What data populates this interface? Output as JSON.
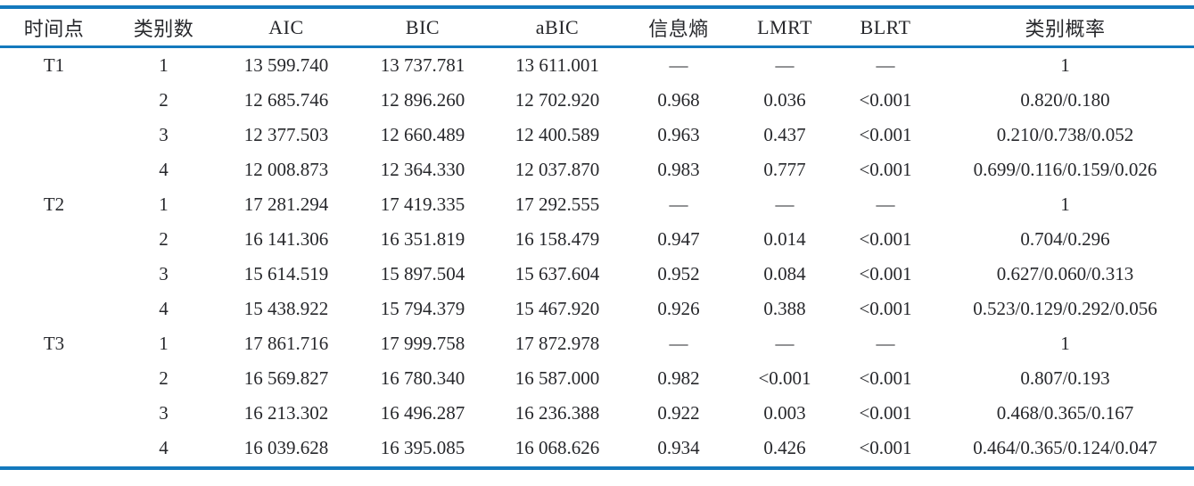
{
  "table": {
    "rule_color": "#1379bd",
    "text_color": "#26272b",
    "columns": [
      "时间点",
      "类别数",
      "AIC",
      "BIC",
      "aBIC",
      "信息熵",
      "LMRT",
      "BLRT",
      "类别概率"
    ],
    "rows": [
      [
        "T1",
        "1",
        "13 599.740",
        "13 737.781",
        "13 611.001",
        "—",
        "—",
        "—",
        "1"
      ],
      [
        "",
        "2",
        "12 685.746",
        "12 896.260",
        "12 702.920",
        "0.968",
        "0.036",
        "<0.001",
        "0.820/0.180"
      ],
      [
        "",
        "3",
        "12 377.503",
        "12 660.489",
        "12 400.589",
        "0.963",
        "0.437",
        "<0.001",
        "0.210/0.738/0.052"
      ],
      [
        "",
        "4",
        "12 008.873",
        "12 364.330",
        "12 037.870",
        "0.983",
        "0.777",
        "<0.001",
        "0.699/0.116/0.159/0.026"
      ],
      [
        "T2",
        "1",
        "17 281.294",
        "17 419.335",
        "17 292.555",
        "—",
        "—",
        "—",
        "1"
      ],
      [
        "",
        "2",
        "16 141.306",
        "16 351.819",
        "16 158.479",
        "0.947",
        "0.014",
        "<0.001",
        "0.704/0.296"
      ],
      [
        "",
        "3",
        "15 614.519",
        "15 897.504",
        "15 637.604",
        "0.952",
        "0.084",
        "<0.001",
        "0.627/0.060/0.313"
      ],
      [
        "",
        "4",
        "15 438.922",
        "15 794.379",
        "15 467.920",
        "0.926",
        "0.388",
        "<0.001",
        "0.523/0.129/0.292/0.056"
      ],
      [
        "T3",
        "1",
        "17 861.716",
        "17 999.758",
        "17 872.978",
        "—",
        "—",
        "—",
        "1"
      ],
      [
        "",
        "2",
        "16 569.827",
        "16 780.340",
        "16 587.000",
        "0.982",
        "<0.001",
        "<0.001",
        "0.807/0.193"
      ],
      [
        "",
        "3",
        "16 213.302",
        "16 496.287",
        "16 236.388",
        "0.922",
        "0.003",
        "<0.001",
        "0.468/0.365/0.167"
      ],
      [
        "",
        "4",
        "16 039.628",
        "16 395.085",
        "16 068.626",
        "0.934",
        "0.426",
        "<0.001",
        "0.464/0.365/0.124/0.047"
      ]
    ]
  }
}
